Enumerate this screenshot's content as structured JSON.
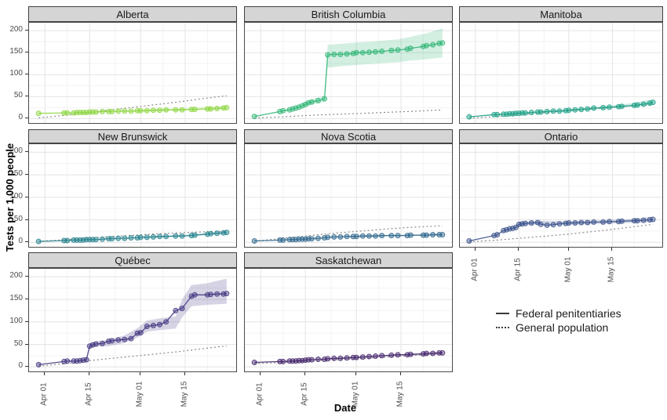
{
  "figure": {
    "y_axis_title": "Tests per 1,000 people",
    "x_axis_title": "Date",
    "y_ticks": [
      0,
      50,
      100,
      150,
      200
    ],
    "x_ticks": [
      {
        "label": "Apr 01",
        "day": 0
      },
      {
        "label": "Apr 15",
        "day": 14
      },
      {
        "label": "May 01",
        "day": 30
      },
      {
        "label": "May 15",
        "day": 44
      }
    ],
    "legend": {
      "items": [
        {
          "label": "Federal penitentiaries",
          "line_style": "solid"
        },
        {
          "label": "General population",
          "line_style": "dotted"
        }
      ]
    },
    "colors": {
      "strip_bg": "#d5d5d5",
      "panel_border": "#4b4b4b",
      "grid_major": "#e4e4e4",
      "grid_minor": "#f3f3f3",
      "general_line": "#8a8a8a",
      "tick_text": "#4d4d4d",
      "legend_key": "#3a3a3a"
    }
  },
  "chart_data": {
    "type": "line",
    "title": "",
    "xlabel": "Date",
    "ylabel": "Tests per 1,000 people",
    "x_unit": "days_since_Apr_01",
    "x_domain": [
      -5,
      60
    ],
    "y_domain_render": [
      -10,
      218
    ],
    "ylim": [
      0,
      200
    ],
    "grid": true,
    "x_minor_days": [
      7,
      22,
      37,
      51
    ],
    "y_minor": [
      25,
      75,
      125,
      175
    ],
    "x_days": [
      -2,
      6,
      7,
      9,
      10,
      11,
      12,
      13,
      14,
      15,
      16,
      18,
      20,
      21,
      23,
      25,
      27,
      29,
      30,
      32,
      34,
      36,
      38,
      41,
      43,
      46,
      47,
      51,
      52,
      54,
      56,
      57
    ],
    "general_x": [
      -2,
      0,
      7,
      14,
      21,
      28,
      35,
      42,
      49,
      57
    ],
    "panels": [
      {
        "title": "Alberta",
        "color": "#8fd744",
        "federal_y": [
          12,
          13,
          13,
          13,
          14,
          14,
          14,
          14,
          15,
          15,
          15,
          16,
          16,
          16,
          17,
          17,
          17,
          18,
          18,
          18,
          19,
          19,
          20,
          20,
          20,
          21,
          21,
          22,
          22,
          23,
          24,
          25
        ],
        "general_y": [
          2,
          3,
          8,
          14,
          20,
          26,
          32,
          38,
          45,
          52
        ],
        "ribbon": {
          "x": [
            29,
            41,
            57
          ],
          "lo": [
            16,
            18,
            21
          ],
          "hi": [
            20,
            23,
            29
          ]
        }
      },
      {
        "title": "British Columbia",
        "color": "#35b779",
        "federal_y": [
          5,
          16,
          18,
          20,
          22,
          24,
          26,
          29,
          32,
          36,
          38,
          41,
          45,
          145,
          146,
          146,
          147,
          148,
          150,
          150,
          151,
          152,
          153,
          155,
          156,
          158,
          160,
          164,
          166,
          168,
          171,
          172
        ],
        "general_y": [
          1,
          2,
          4,
          7,
          9,
          11,
          13,
          15,
          17,
          20
        ],
        "ribbon": {
          "x": [
            13,
            16,
            20,
            21,
            25,
            30,
            36,
            43,
            47,
            52,
            57
          ],
          "lo": [
            28,
            32,
            38,
            116,
            119,
            122,
            125,
            128,
            132,
            135,
            139
          ],
          "hi": [
            36,
            44,
            52,
            168,
            170,
            173,
            176,
            180,
            186,
            194,
            205
          ]
        }
      },
      {
        "title": "Manitoba",
        "color": "#1fa187",
        "federal_y": [
          4,
          9,
          9,
          10,
          10,
          11,
          11,
          12,
          12,
          13,
          13,
          14,
          15,
          15,
          16,
          17,
          17,
          18,
          19,
          20,
          21,
          22,
          24,
          25,
          26,
          27,
          28,
          30,
          31,
          33,
          35,
          37
        ],
        "general_y": [
          1,
          2,
          5,
          9,
          13,
          17,
          21,
          24,
          28,
          32
        ],
        "ribbon": {
          "x": [
            20,
            30,
            41,
            50,
            57
          ],
          "lo": [
            14,
            17,
            22,
            27,
            31
          ],
          "hi": [
            17,
            21,
            28,
            35,
            44
          ]
        }
      },
      {
        "title": "New Brunswick",
        "color": "#26828e",
        "federal_y": [
          2,
          4,
          4,
          5,
          5,
          5,
          5,
          6,
          6,
          6,
          6,
          7,
          8,
          8,
          9,
          9,
          10,
          10,
          11,
          11,
          12,
          13,
          13,
          14,
          14,
          15,
          16,
          18,
          19,
          20,
          21,
          22
        ],
        "general_y": [
          2,
          3,
          6,
          10,
          13,
          16,
          19,
          21,
          23,
          25
        ],
        "ribbon": {
          "x": [
            30,
            43,
            57
          ],
          "lo": [
            10,
            13,
            19
          ],
          "hi": [
            13,
            16,
            26
          ]
        }
      },
      {
        "title": "Nova Scotia",
        "color": "#31688e",
        "federal_y": [
          3,
          5,
          5,
          6,
          6,
          6,
          7,
          7,
          7,
          8,
          8,
          9,
          10,
          11,
          12,
          12,
          13,
          13,
          13,
          14,
          14,
          14,
          15,
          15,
          15,
          15,
          16,
          16,
          16,
          17,
          17,
          17
        ],
        "general_y": [
          3,
          4,
          9,
          14,
          19,
          23,
          27,
          31,
          34,
          37
        ],
        "ribbon": {
          "x": [
            30,
            57
          ],
          "lo": [
            12,
            15
          ],
          "hi": [
            15,
            19
          ]
        }
      },
      {
        "title": "Ontario",
        "color": "#3b528b",
        "federal_y": [
          3,
          15,
          17,
          26,
          28,
          30,
          31,
          33,
          40,
          41,
          42,
          43,
          44,
          40,
          38,
          39,
          41,
          42,
          43,
          43,
          44,
          44,
          45,
          45,
          46,
          46,
          47,
          48,
          48,
          49,
          50,
          51
        ],
        "general_y": [
          1,
          2,
          5,
          9,
          13,
          17,
          22,
          27,
          33,
          40
        ],
        "ribbon": {
          "x": [
            13,
            14,
            20,
            30,
            41,
            50,
            57
          ],
          "lo": [
            30,
            36,
            40,
            39,
            41,
            43,
            45
          ],
          "hi": [
            36,
            45,
            48,
            47,
            49,
            52,
            57
          ]
        }
      },
      {
        "title": "Québec",
        "color": "#443a83",
        "federal_y": [
          5,
          12,
          13,
          13,
          13,
          14,
          15,
          16,
          46,
          49,
          51,
          52,
          57,
          58,
          60,
          61,
          63,
          75,
          76,
          90,
          92,
          94,
          100,
          125,
          130,
          157,
          160,
          160,
          161,
          162,
          162,
          163
        ],
        "general_y": [
          2,
          3,
          8,
          14,
          19,
          24,
          29,
          34,
          40,
          47
        ],
        "ribbon": {
          "x": [
            13,
            14,
            16,
            20,
            25,
            29,
            32,
            36,
            41,
            43,
            46,
            51,
            57
          ],
          "lo": [
            14,
            41,
            45,
            46,
            53,
            65,
            78,
            82,
            85,
            110,
            135,
            138,
            140
          ],
          "hi": [
            18,
            52,
            57,
            60,
            70,
            86,
            103,
            108,
            112,
            150,
            182,
            186,
            196
          ]
        }
      },
      {
        "title": "Saskatchewan",
        "color": "#46296e",
        "federal_y": [
          10,
          12,
          12,
          13,
          13,
          13,
          14,
          14,
          15,
          16,
          16,
          17,
          17,
          18,
          19,
          19,
          20,
          21,
          21,
          22,
          23,
          24,
          25,
          26,
          27,
          27,
          28,
          29,
          30,
          30,
          31,
          31
        ],
        "general_y": [
          7,
          8,
          10,
          12,
          15,
          17,
          20,
          23,
          26,
          30
        ],
        "ribbon": {
          "x": [
            20,
            41,
            57
          ],
          "lo": [
            16,
            23,
            28
          ],
          "hi": [
            19,
            27,
            34
          ]
        }
      }
    ]
  }
}
